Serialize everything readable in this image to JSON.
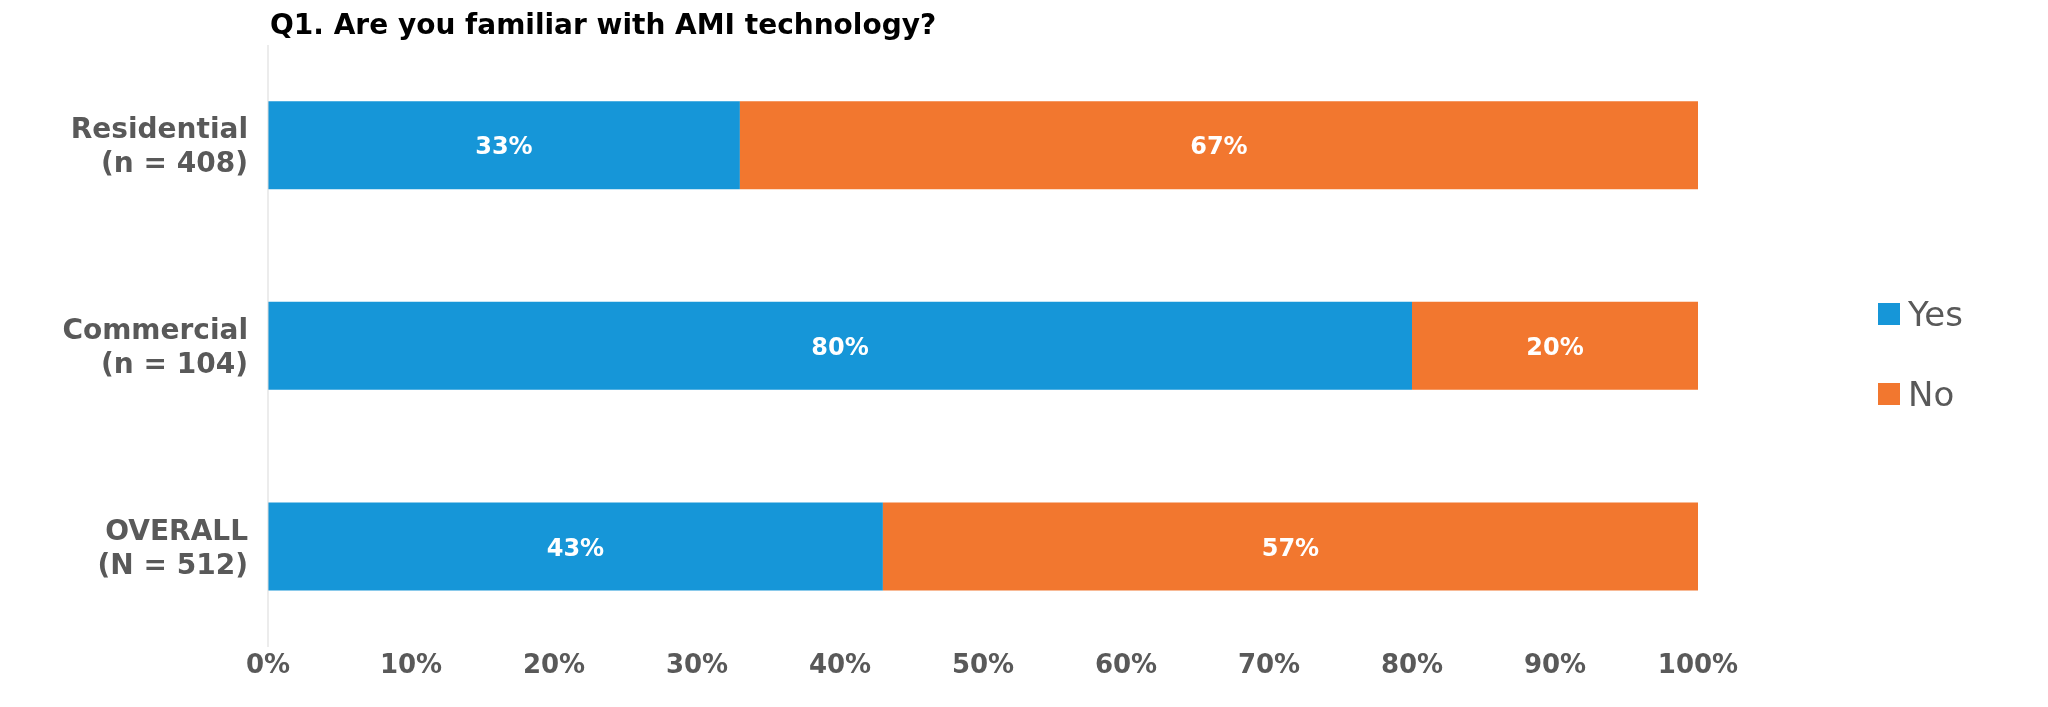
{
  "chart_data": {
    "type": "bar",
    "title": "Q1. Are you familiar with AMI technology?",
    "orientation": "horizontal",
    "stacked": true,
    "categories": [
      "Residential\n(n = 408)",
      "Commercial\n(n = 104)",
      "OVERALL\n(N = 512)"
    ],
    "series": [
      {
        "name": "Yes",
        "color": "#1696d8",
        "values": [
          33,
          80,
          43
        ]
      },
      {
        "name": "No",
        "color": "#f2772f",
        "values": [
          67,
          20,
          57
        ]
      }
    ],
    "xlim": [
      0,
      100
    ],
    "xticks": [
      {
        "value": 0,
        "label": "0%"
      },
      {
        "value": 10,
        "label": "10%"
      },
      {
        "value": 20,
        "label": "20%"
      },
      {
        "value": 30,
        "label": "30%"
      },
      {
        "value": 40,
        "label": "40%"
      },
      {
        "value": 50,
        "label": "50%"
      },
      {
        "value": 60,
        "label": "60%"
      },
      {
        "value": 70,
        "label": "70%"
      },
      {
        "value": 80,
        "label": "80%"
      },
      {
        "value": 90,
        "label": "90%"
      },
      {
        "value": 100,
        "label": "100%"
      }
    ],
    "value_labels": [
      [
        "33%",
        "80%",
        "43%"
      ],
      [
        "67%",
        "20%",
        "57%"
      ]
    ],
    "grid": false,
    "legend": "right"
  }
}
